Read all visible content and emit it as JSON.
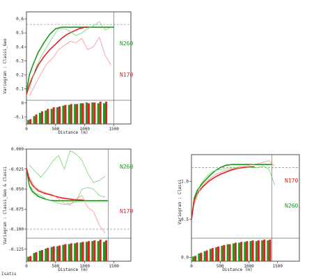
{
  "colors": {
    "green": "#1a9a1a",
    "red": "#e02020",
    "light_green": "#5fcf5f",
    "light_red": "#ff8080",
    "sill": "#999999"
  },
  "footer": {
    "label": "Isatis"
  },
  "chart_data": [
    {
      "type": "line",
      "ylabel": "Variogram : Classi_Geo",
      "xlabel": "Distance (m)",
      "xlim": [
        0,
        1600
      ],
      "ylim": [
        -0.15,
        0.65
      ],
      "xticks": [
        0,
        500,
        1000,
        1500
      ],
      "yticks": [
        -0.1,
        0,
        0.1,
        0.2,
        0.3,
        0.4,
        0.5,
        0.6
      ],
      "ytick_labels": [
        "-0.1",
        "0",
        "0.1",
        "0.2",
        "0.3",
        "0.4",
        "0.5",
        "0.6"
      ],
      "sill": 0.56,
      "vline": 1500,
      "direction_labels": [
        "N260",
        "N170"
      ],
      "series": [
        {
          "name": "N260",
          "kind": "model",
          "color": "green",
          "x": [
            0,
            50,
            100,
            200,
            300,
            400,
            500,
            600,
            700,
            1500
          ],
          "y": [
            0.08,
            0.2,
            0.26,
            0.36,
            0.43,
            0.49,
            0.53,
            0.54,
            0.54,
            0.54
          ]
        },
        {
          "name": "N170",
          "kind": "model",
          "color": "red",
          "x": [
            0,
            50,
            100,
            200,
            300,
            400,
            500,
            600,
            700,
            800,
            900,
            1000,
            1050
          ],
          "y": [
            0.06,
            0.13,
            0.18,
            0.27,
            0.33,
            0.38,
            0.42,
            0.46,
            0.49,
            0.51,
            0.53,
            0.54,
            0.54
          ]
        },
        {
          "name": "N260",
          "kind": "experimental",
          "color": "light_green",
          "x": [
            50,
            150,
            250,
            350,
            450,
            550,
            650,
            750,
            850,
            950,
            1050,
            1150,
            1250,
            1350,
            1450
          ],
          "y": [
            0.1,
            0.24,
            0.33,
            0.4,
            0.47,
            0.53,
            0.53,
            0.51,
            0.48,
            0.5,
            0.53,
            0.55,
            0.58,
            0.52,
            0.54
          ]
        },
        {
          "name": "N170",
          "kind": "experimental",
          "color": "light_red",
          "x": [
            50,
            150,
            250,
            350,
            450,
            550,
            650,
            750,
            850,
            950,
            1050,
            1150,
            1250,
            1350,
            1450
          ],
          "y": [
            0.05,
            0.13,
            0.21,
            0.28,
            0.32,
            0.38,
            0.41,
            0.44,
            0.43,
            0.46,
            0.38,
            0.4,
            0.47,
            0.34,
            0.27
          ]
        }
      ],
      "histogram": {
        "x": [
          50,
          150,
          250,
          350,
          450,
          550,
          650,
          750,
          850,
          950,
          1050,
          1150,
          1250,
          1350
        ],
        "green": [
          5,
          10,
          14,
          17,
          19,
          21,
          23,
          24,
          25,
          26,
          27,
          27,
          26,
          26
        ],
        "red": [
          6,
          12,
          16,
          19,
          21,
          22,
          24,
          25,
          25,
          26,
          26,
          27,
          28,
          28
        ]
      }
    },
    {
      "type": "line",
      "ylabel": "Variogram : Classi_Geo & Classi",
      "xlabel": "Distance (m)",
      "xlim": [
        0,
        1600
      ],
      "ylim": [
        -0.14,
        0.0
      ],
      "xticks": [
        0,
        500,
        1000,
        1500
      ],
      "yticks": [
        0,
        -0.025,
        -0.05,
        -0.075,
        -0.1,
        -0.125
      ],
      "ytick_labels": [
        "0.000",
        "-0.025",
        "-0.050",
        "-0.075",
        "-0.100",
        "-0.125"
      ],
      "sill": -0.1,
      "vline": 1400,
      "direction_labels": [
        "N260",
        "N170"
      ],
      "series": [
        {
          "name": "N260",
          "kind": "model",
          "color": "green",
          "x": [
            0,
            50,
            100,
            200,
            300,
            400,
            500,
            600,
            1400
          ],
          "y": [
            -0.024,
            -0.046,
            -0.053,
            -0.059,
            -0.062,
            -0.064,
            -0.0645,
            -0.0645,
            -0.0645
          ]
        },
        {
          "name": "N170",
          "kind": "model",
          "color": "red",
          "x": [
            0,
            50,
            100,
            200,
            300,
            400,
            500,
            600,
            700,
            800,
            900,
            1000
          ],
          "y": [
            -0.024,
            -0.038,
            -0.045,
            -0.052,
            -0.055,
            -0.057,
            -0.059,
            -0.061,
            -0.062,
            -0.063,
            -0.0635,
            -0.064
          ]
        },
        {
          "name": "N260",
          "kind": "experimental",
          "color": "light_green",
          "x": [
            50,
            150,
            250,
            350,
            450,
            550,
            650,
            750,
            850,
            950,
            1050,
            1150,
            1250,
            1350
          ],
          "y": [
            -0.045,
            -0.055,
            -0.058,
            -0.063,
            -0.065,
            -0.068,
            -0.069,
            -0.068,
            -0.066,
            -0.05,
            -0.048,
            -0.05,
            -0.058,
            -0.06
          ]
        },
        {
          "name": "N260",
          "kind": "envelope",
          "color": "light_green",
          "x": [
            50,
            150,
            250,
            350,
            450,
            550,
            650,
            750,
            850,
            950,
            1050,
            1150,
            1250,
            1350
          ],
          "y": [
            -0.02,
            -0.028,
            -0.035,
            -0.026,
            -0.015,
            -0.008,
            -0.025,
            -0.002,
            -0.006,
            -0.014,
            -0.03,
            -0.042,
            -0.039,
            -0.034
          ]
        },
        {
          "name": "N170",
          "kind": "experimental",
          "color": "light_red",
          "x": [
            50,
            150,
            250,
            350,
            450,
            550,
            650,
            750,
            850,
            950,
            1050,
            1150,
            1250,
            1350
          ],
          "y": [
            -0.035,
            -0.048,
            -0.052,
            -0.055,
            -0.057,
            -0.062,
            -0.068,
            -0.07,
            -0.062,
            -0.058,
            -0.073,
            -0.078,
            -0.095,
            -0.105
          ]
        }
      ],
      "histogram": {
        "x": [
          50,
          150,
          250,
          350,
          450,
          550,
          650,
          750,
          850,
          950,
          1050,
          1150,
          1250,
          1350
        ],
        "green": [
          6,
          11,
          14,
          17,
          19,
          20,
          22,
          23,
          24,
          25,
          26,
          27,
          27,
          26
        ],
        "red": [
          7,
          12,
          15,
          18,
          20,
          21,
          23,
          24,
          25,
          26,
          27,
          28,
          29,
          28
        ]
      }
    },
    {
      "type": "line",
      "ylabel": "Variogram : Classi",
      "xlabel": "Distance (m)",
      "xlim": [
        0,
        1600
      ],
      "ylim": [
        -0.05,
        1.35
      ],
      "xticks": [
        0,
        500,
        1000,
        1500
      ],
      "yticks": [
        0,
        0.5,
        1.0
      ],
      "ytick_labels": [
        "0.0",
        "0.5",
        "1.0"
      ],
      "sill": 1.18,
      "vline": 1400,
      "direction_labels": [
        "N170",
        "N260"
      ],
      "series": [
        {
          "name": "N260",
          "kind": "model",
          "color": "green",
          "x": [
            0,
            50,
            100,
            200,
            300,
            400,
            500,
            600,
            700,
            1400
          ],
          "y": [
            0.5,
            0.78,
            0.88,
            0.98,
            1.06,
            1.13,
            1.18,
            1.21,
            1.22,
            1.22
          ]
        },
        {
          "name": "N170",
          "kind": "model",
          "color": "red",
          "x": [
            0,
            50,
            100,
            200,
            300,
            400,
            500,
            600,
            700,
            800,
            900,
            1000,
            1100
          ],
          "y": [
            0.5,
            0.76,
            0.84,
            0.93,
            1.0,
            1.05,
            1.09,
            1.12,
            1.15,
            1.17,
            1.18,
            1.19,
            1.19
          ]
        },
        {
          "name": "N260",
          "kind": "experimental",
          "color": "light_green",
          "x": [
            50,
            150,
            250,
            350,
            450,
            550,
            650,
            750,
            850,
            950,
            1050,
            1150,
            1250,
            1350,
            1450
          ],
          "y": [
            0.72,
            0.95,
            1.05,
            1.12,
            1.15,
            1.16,
            1.17,
            1.18,
            1.19,
            1.19,
            1.18,
            1.18,
            1.2,
            1.16,
            0.95
          ]
        },
        {
          "name": "N170",
          "kind": "experimental",
          "color": "light_red",
          "x": [
            50,
            150,
            250,
            350,
            450,
            550,
            650,
            750,
            850,
            950,
            1050,
            1150,
            1250,
            1350,
            1450
          ],
          "y": [
            0.7,
            0.9,
            0.99,
            1.05,
            1.1,
            1.13,
            1.15,
            1.17,
            1.18,
            1.2,
            1.22,
            1.23,
            1.25,
            1.27,
            1.2
          ]
        }
      ],
      "histogram": {
        "x": [
          50,
          150,
          250,
          350,
          450,
          550,
          650,
          750,
          850,
          950,
          1050,
          1150,
          1250,
          1350
        ],
        "green": [
          6,
          10,
          13,
          16,
          18,
          20,
          22,
          23,
          24,
          25,
          26,
          26,
          27,
          27
        ],
        "red": [
          7,
          11,
          14,
          17,
          19,
          21,
          22,
          24,
          25,
          26,
          27,
          27,
          28,
          28
        ]
      }
    }
  ]
}
